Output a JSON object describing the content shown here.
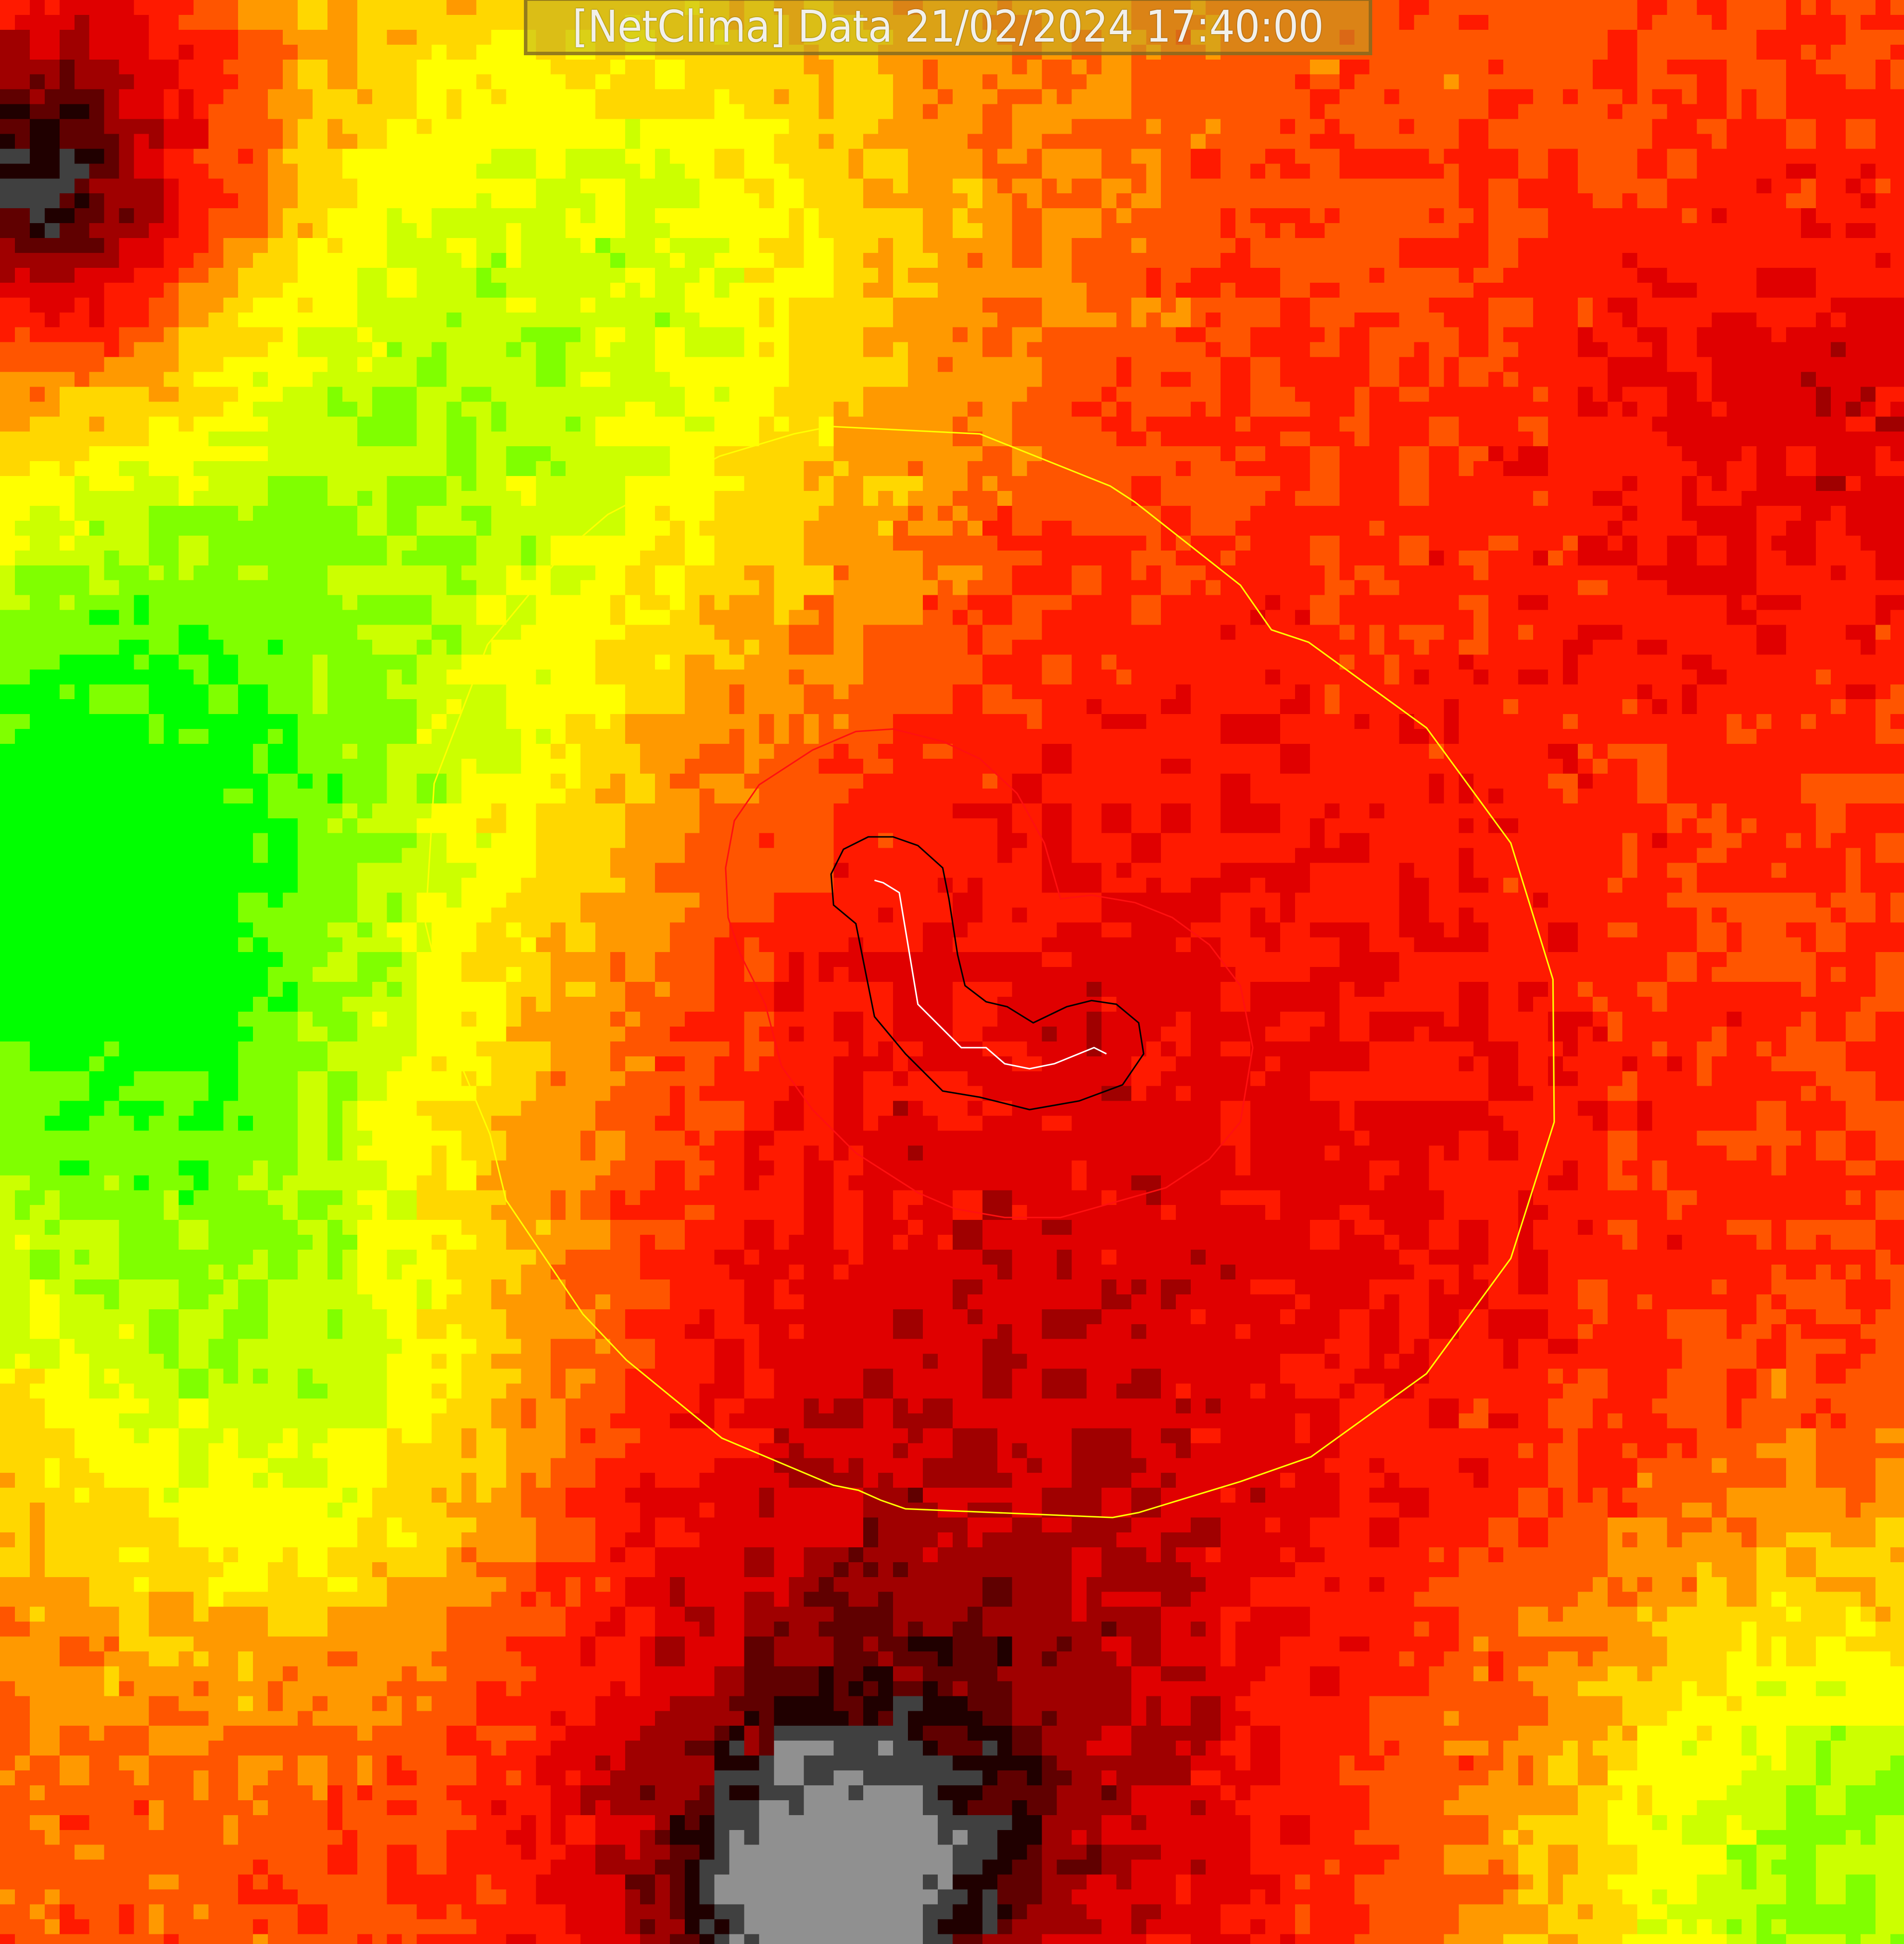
{
  "header": {
    "title": "[NetClima] Data 21/02/2024 17:40:00"
  },
  "map": {
    "colormap": [
      "#00ff00",
      "#80ff00",
      "#ccff00",
      "#ffff00",
      "#ffd700",
      "#ff9900",
      "#ff5500",
      "#ff1a00",
      "#e00000",
      "#a00000",
      "#600000",
      "#200000",
      "#404040",
      "#909090"
    ],
    "contour_colors": {
      "outer": "#ffff00",
      "middle": "#ff0000",
      "inner": "#000000",
      "track": "#ffffff"
    }
  }
}
